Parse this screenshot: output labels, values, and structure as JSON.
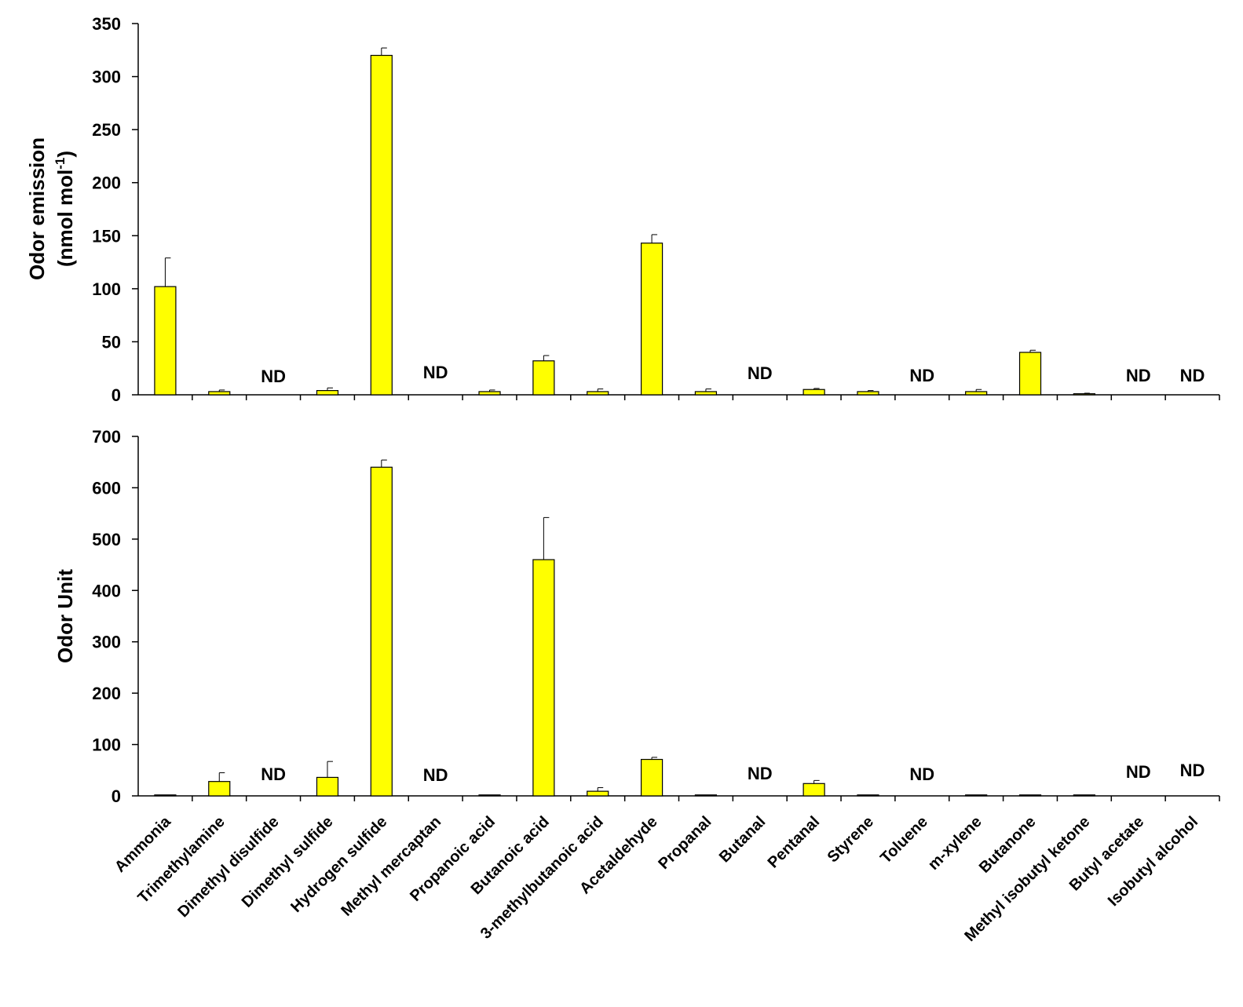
{
  "bar_color": "#FFFF00",
  "bar_edge_color": "#000000",
  "chart_data": [
    {
      "type": "bar",
      "panel": "top",
      "ylabel_line1": "Odor emission",
      "ylabel_line2": "(nmol mol",
      "ylabel_sup": "-1",
      "ylabel_close": ")",
      "ylim": [
        0,
        350
      ],
      "yticks": [
        0,
        50,
        100,
        150,
        200,
        250,
        300,
        350
      ],
      "grid": false,
      "categories": [
        "Ammonia",
        "Trimethylamine",
        "Dimethyl disulfide",
        "Dimethyl sulfide",
        "Hydrogen sulfide",
        "Methyl mercaptan",
        "Propanoic acid",
        "Butanoic acid",
        "3-methylbutanoic acid",
        "Acetaldehyde",
        "Propanal",
        "Butanal",
        "Pentanal",
        "Styrene",
        "Toluene",
        "m-xylene",
        "Butanone",
        "Methyl isobutyl ketone",
        "Butyl acetate",
        "Isobutyl alcohol"
      ],
      "values": [
        102,
        3,
        null,
        4,
        320,
        null,
        3,
        32,
        3,
        143,
        3,
        null,
        5,
        3,
        null,
        3,
        40,
        1,
        null,
        null
      ],
      "errors": [
        27,
        1.5,
        null,
        2.5,
        7,
        null,
        1.5,
        5,
        2.5,
        8,
        2.5,
        null,
        1,
        1,
        null,
        2,
        2,
        0.5,
        null,
        null
      ],
      "nd_text": "ND"
    },
    {
      "type": "bar",
      "panel": "bottom",
      "ylabel": "Odor Unit",
      "ylim": [
        0,
        700
      ],
      "yticks": [
        0,
        100,
        200,
        300,
        400,
        500,
        600,
        700
      ],
      "grid": false,
      "categories": [
        "Ammonia",
        "Trimethylamine",
        "Dimethyl disulfide",
        "Dimethyl sulfide",
        "Hydrogen sulfide",
        "Methyl mercaptan",
        "Propanoic acid",
        "Butanoic acid",
        "3-methylbutanoic acid",
        "Acetaldehyde",
        "Propanal",
        "Butanal",
        "Pentanal",
        "Styrene",
        "Toluene",
        "m-xylene",
        "Butanone",
        "Methyl isobutyl ketone",
        "Butyl acetate",
        "Isobutyl alcohol"
      ],
      "values": [
        1,
        28,
        null,
        36,
        640,
        null,
        1,
        460,
        9,
        71,
        1,
        null,
        24,
        1,
        null,
        1,
        1,
        1,
        null,
        null
      ],
      "errors": [
        0,
        17,
        null,
        31,
        14,
        null,
        0,
        82,
        7,
        4,
        0,
        null,
        6,
        0,
        null,
        0,
        0,
        0,
        null,
        null
      ],
      "nd_text": "ND"
    }
  ]
}
